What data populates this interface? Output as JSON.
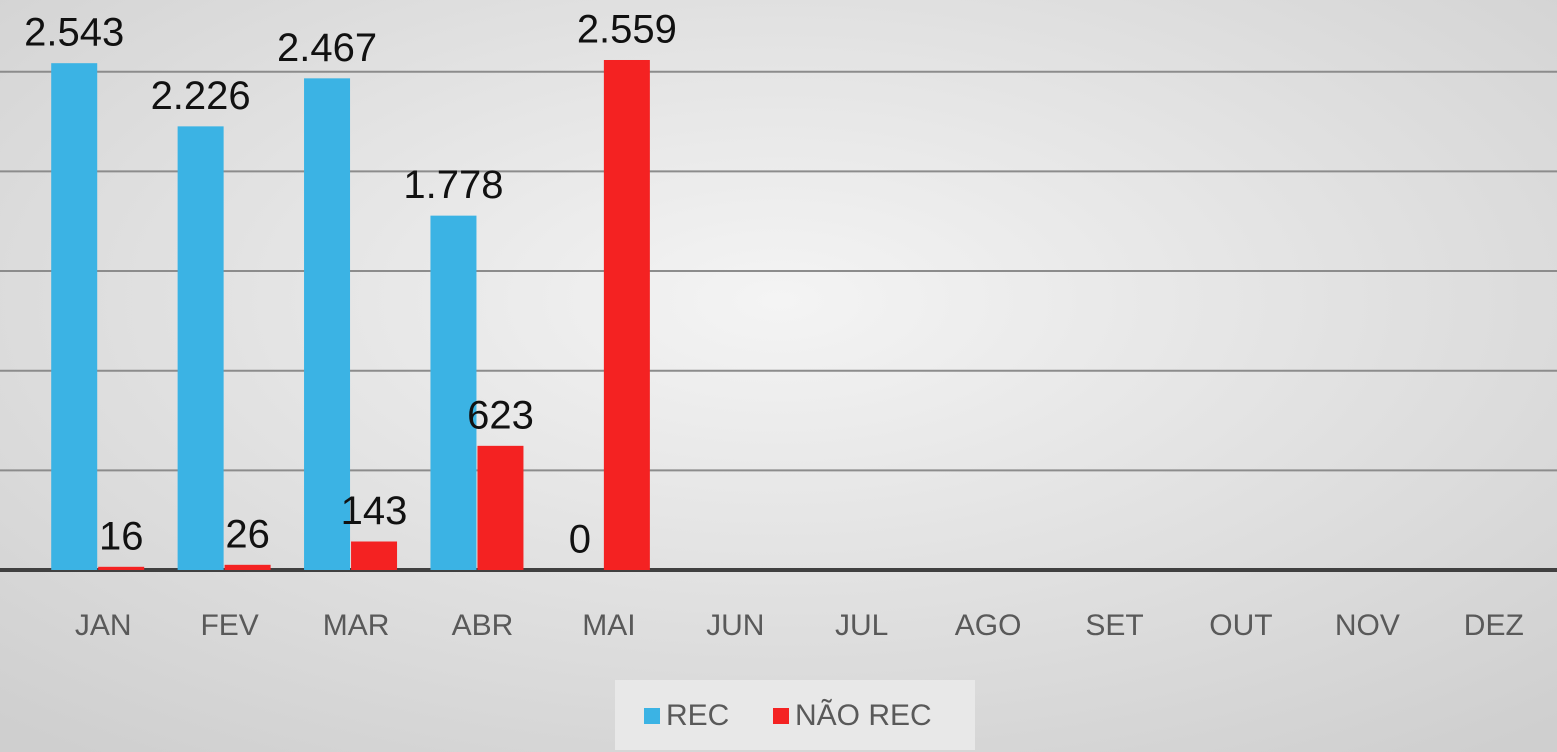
{
  "chart_data": {
    "type": "bar",
    "categories": [
      "JAN",
      "FEV",
      "MAR",
      "ABR",
      "MAI",
      "JUN",
      "JUL",
      "AGO",
      "SET",
      "OUT",
      "NOV",
      "DEZ"
    ],
    "series": [
      {
        "name": "REC",
        "color": "#3bb3e4",
        "values": [
          2543,
          2226,
          2467,
          1778,
          0,
          null,
          null,
          null,
          null,
          null,
          null,
          null
        ],
        "value_labels": [
          "2.543",
          "2.226",
          "2.467",
          "1.778",
          "0",
          null,
          null,
          null,
          null,
          null,
          null,
          null
        ]
      },
      {
        "name": "NÃO REC",
        "color": "#f42222",
        "values": [
          16,
          26,
          143,
          623,
          2559,
          null,
          null,
          null,
          null,
          null,
          null,
          null
        ],
        "value_labels": [
          "16",
          "26",
          "143",
          "623",
          "2.559",
          null,
          null,
          null,
          null,
          null,
          null,
          null
        ]
      }
    ],
    "ylim": [
      0,
      2850
    ],
    "yticks": [
      0,
      500,
      1000,
      1500,
      2000,
      2500
    ],
    "grid": true,
    "legend": "bottom"
  }
}
